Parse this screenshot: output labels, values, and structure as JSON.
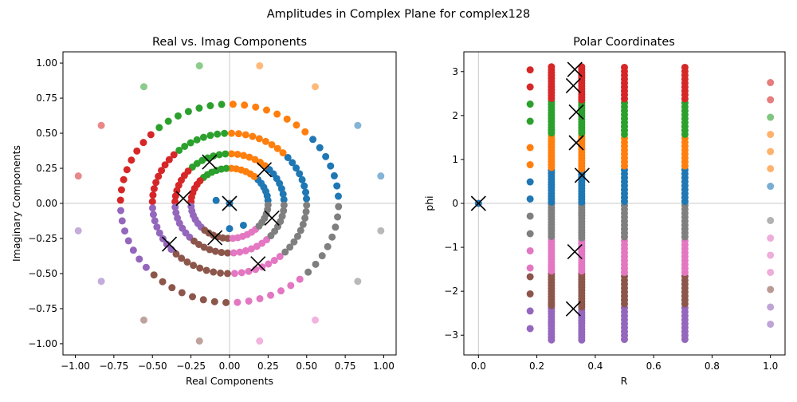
{
  "figure": {
    "title": "Amplitudes in Complex Plane for complex128"
  },
  "colors": {
    "palette": [
      "#1f77b4",
      "#ff7f0e",
      "#2ca02c",
      "#d62728",
      "#9467bd",
      "#8c564b",
      "#e377c2",
      "#7f7f7f"
    ],
    "cross": "#000000",
    "reference_line": "#c8c8c8"
  },
  "chart_data": [
    {
      "type": "scatter",
      "title": "Real vs. Imag Components",
      "xlabel": "Real Components",
      "ylabel": "Imaginary Components",
      "xlim": [
        -1.08,
        1.08
      ],
      "ylim": [
        -1.08,
        1.08
      ],
      "xticks": [
        -1.0,
        -0.75,
        -0.5,
        -0.25,
        0.0,
        0.25,
        0.5,
        0.75,
        1.0
      ],
      "xtick_labels": [
        "−1.00",
        "−0.75",
        "−0.50",
        "−0.25",
        "0.00",
        "0.25",
        "0.50",
        "0.75",
        "1.00"
      ],
      "yticks": [
        -1.0,
        -0.75,
        -0.5,
        -0.25,
        0.0,
        0.25,
        0.5,
        0.75,
        1.0
      ],
      "ytick_labels": [
        "−1.00",
        "−0.75",
        "−0.50",
        "−0.25",
        "0.00",
        "0.25",
        "0.50",
        "0.75",
        "1.00"
      ],
      "reference_lines": {
        "x": 0,
        "y": 0
      },
      "rings": [
        {
          "radius": 0.25,
          "points": 48,
          "opacity": 1.0
        },
        {
          "radius": 0.3536,
          "points": 56,
          "opacity": 1.0
        },
        {
          "radius": 0.5,
          "points": 68,
          "opacity": 1.0
        },
        {
          "radius": 0.7071,
          "points": 60,
          "opacity": 1.0
        },
        {
          "radius": 1.0,
          "points": 16,
          "opacity": 0.55
        }
      ],
      "extra_points": [
        {
          "x": 0.0,
          "y": 0.0,
          "color": 0
        },
        {
          "x": 0.09,
          "y": -0.156,
          "color": 0
        },
        {
          "x": -0.087,
          "y": 0.021,
          "color": 0
        },
        {
          "x": 0.0,
          "y": -0.18,
          "color": 0
        }
      ],
      "crosses": [
        {
          "x": -0.13,
          "y": 0.295
        },
        {
          "x": 0.225,
          "y": 0.24
        },
        {
          "x": -0.3,
          "y": 0.035
        },
        {
          "x": 0.0,
          "y": 0.0
        },
        {
          "x": 0.275,
          "y": -0.105
        },
        {
          "x": -0.095,
          "y": -0.245
        },
        {
          "x": -0.39,
          "y": -0.29
        },
        {
          "x": 0.185,
          "y": -0.43
        }
      ]
    },
    {
      "type": "scatter",
      "title": "Polar Coordinates",
      "xlabel": "R",
      "ylabel": "phi",
      "xlim": [
        -0.05,
        1.05
      ],
      "ylim": [
        -3.45,
        3.45
      ],
      "xticks": [
        0.0,
        0.2,
        0.4,
        0.6,
        0.8,
        1.0
      ],
      "xtick_labels": [
        "0.0",
        "0.2",
        "0.4",
        "0.6",
        "0.8",
        "1.0"
      ],
      "yticks": [
        -3,
        -2,
        -1,
        0,
        1,
        2,
        3
      ],
      "ytick_labels": [
        "−3",
        "−2",
        "−1",
        "0",
        "1",
        "2",
        "3"
      ],
      "reference_lines": {
        "x": 0,
        "y": 0
      },
      "columns": [
        {
          "r": 0.177,
          "phis": [
            3.04,
            2.65,
            2.26,
            1.87,
            1.27,
            0.88,
            0.49,
            0.1,
            -0.29,
            -0.69,
            -1.08,
            -1.47,
            -1.67,
            -2.06,
            -2.45,
            -2.85
          ],
          "opacity": 1.0
        },
        {
          "r": 0.25,
          "count": 96,
          "opacity": 1.0
        },
        {
          "r": 0.3536,
          "count": 100,
          "opacity": 1.0
        },
        {
          "r": 0.5,
          "count": 70,
          "opacity": 1.0
        },
        {
          "r": 0.7071,
          "count": 70,
          "opacity": 1.0
        },
        {
          "r": 1.0,
          "phis": [
            2.75,
            2.36,
            1.96,
            1.57,
            1.18,
            0.79,
            0.39,
            -0.39,
            -0.79,
            -1.18,
            -1.57,
            -1.96,
            -2.36,
            -2.75
          ],
          "opacity": 0.6
        }
      ],
      "extra_points": [
        {
          "r": 0.0,
          "phi": 0.0,
          "color": 0
        }
      ],
      "crosses": [
        {
          "r": 0.0,
          "phi": 0.0
        },
        {
          "r": 0.33,
          "phi": 3.05
        },
        {
          "r": 0.325,
          "phi": 2.68
        },
        {
          "r": 0.335,
          "phi": 2.08
        },
        {
          "r": 0.335,
          "phi": 1.38
        },
        {
          "r": 0.355,
          "phi": 0.64
        },
        {
          "r": 0.33,
          "phi": -1.1
        },
        {
          "r": 0.325,
          "phi": -2.4
        }
      ]
    }
  ]
}
